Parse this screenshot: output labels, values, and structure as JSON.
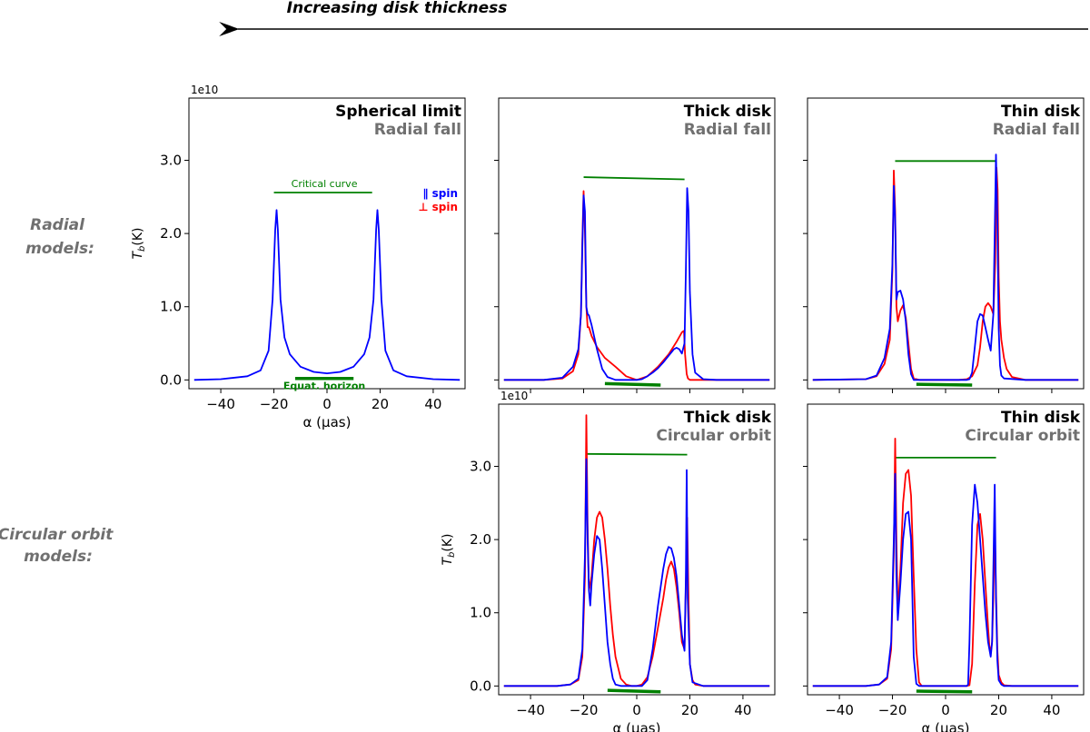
{
  "header": {
    "thickness_label": "Increasing disk thickness"
  },
  "row_labels": {
    "radial": [
      "Radial",
      "models:"
    ],
    "circular": [
      "Circular orbit",
      "models:"
    ]
  },
  "common": {
    "exponent_label": "1e10",
    "ylabel": "T_b(K)",
    "xlabel": "α (μas)",
    "legend": {
      "parallel": "∥ spin",
      "perpendicular": "⊥ spin"
    },
    "annotations": {
      "critical_curve": "Critical curve",
      "equat_horizon": "Equat. horizon"
    },
    "colors": {
      "parallel": "#0000ff",
      "perpendicular": "#ff0000",
      "green": "#008000",
      "title": "#000000",
      "subtitle": "#707070"
    }
  },
  "chart_data": [
    {
      "id": "spherical",
      "type": "line",
      "title": "Spherical limit",
      "subtitle": "Radial fall",
      "xlim": [
        -52,
        52
      ],
      "ylim": [
        -0.12,
        3.85
      ],
      "xticks": [
        -40,
        -20,
        0,
        20,
        40
      ],
      "yticks": [
        0.0,
        1.0,
        2.0,
        3.0
      ],
      "ytick_labels": [
        "0.0",
        "1.0",
        "2.0",
        "3.0"
      ],
      "critical_curve": {
        "x": [
          -20,
          17
        ],
        "y": [
          2.56,
          2.56
        ]
      },
      "horizon": {
        "x": [
          -12,
          10
        ],
        "y": [
          0.02,
          0.02
        ]
      },
      "series": [
        {
          "name": "∥ spin",
          "color": "#0000ff",
          "x": [
            -50,
            -40,
            -30,
            -25,
            -22,
            -20.5,
            -19.5,
            -19,
            -18.5,
            -17.5,
            -16,
            -14,
            -10,
            -5,
            0,
            5,
            10,
            14,
            16,
            17.5,
            18.5,
            19,
            19.5,
            20.5,
            22,
            25,
            30,
            40,
            50
          ],
          "y": [
            0,
            0.01,
            0.05,
            0.13,
            0.4,
            1.1,
            2.05,
            2.32,
            2.05,
            1.1,
            0.58,
            0.35,
            0.18,
            0.11,
            0.09,
            0.11,
            0.18,
            0.35,
            0.58,
            1.1,
            2.05,
            2.32,
            2.05,
            1.1,
            0.4,
            0.13,
            0.05,
            0.01,
            0
          ]
        }
      ]
    },
    {
      "id": "thick-radial",
      "type": "line",
      "title": "Thick disk",
      "subtitle": "Radial fall",
      "xlim": [
        -52,
        52
      ],
      "ylim": [
        -0.12,
        3.85
      ],
      "xticks": [
        -40,
        -20,
        0,
        20,
        40
      ],
      "yticks": [
        0.0,
        1.0,
        2.0,
        3.0
      ],
      "critical_curve": {
        "x": [
          -20,
          18
        ],
        "y": [
          2.77,
          2.74
        ]
      },
      "horizon": {
        "x": [
          -12,
          9
        ],
        "y": [
          -0.05,
          -0.07
        ]
      },
      "series": [
        {
          "name": "⊥ spin",
          "color": "#ff0000",
          "x": [
            -50,
            -35,
            -28,
            -24,
            -22,
            -21,
            -20.5,
            -20,
            -19.5,
            -19,
            -18.5,
            -18,
            -17,
            -15,
            -12,
            -8,
            -4,
            0,
            4,
            8,
            12,
            15,
            17,
            17.8,
            18.2,
            18.8,
            19.3,
            20,
            22,
            30,
            50
          ],
          "y": [
            0,
            0,
            0.02,
            0.12,
            0.35,
            0.9,
            1.9,
            2.58,
            2.0,
            1.0,
            0.72,
            0.72,
            0.6,
            0.45,
            0.3,
            0.18,
            0.05,
            0,
            0.05,
            0.18,
            0.35,
            0.52,
            0.65,
            0.67,
            0.35,
            0.08,
            0.02,
            0,
            0,
            0,
            0
          ]
        },
        {
          "name": "∥ spin",
          "color": "#0000ff",
          "x": [
            -50,
            -35,
            -28,
            -24,
            -22,
            -21,
            -20.5,
            -20,
            -19.5,
            -19,
            -18.5,
            -18,
            -17,
            -15,
            -13,
            -11,
            -8,
            -4,
            0,
            2,
            4,
            6,
            8,
            10,
            12,
            14,
            15,
            16,
            17,
            18,
            18.5,
            19,
            19.5,
            20,
            21,
            22,
            25,
            30,
            50
          ],
          "y": [
            0,
            0,
            0.03,
            0.18,
            0.42,
            0.9,
            1.8,
            2.52,
            2.3,
            1.0,
            0.9,
            0.88,
            0.75,
            0.42,
            0.15,
            0.04,
            0,
            0,
            0,
            0.01,
            0.05,
            0.1,
            0.16,
            0.24,
            0.33,
            0.42,
            0.44,
            0.42,
            0.36,
            0.5,
            1.5,
            2.62,
            2.3,
            1.2,
            0.35,
            0.1,
            0.01,
            0,
            0
          ]
        }
      ]
    },
    {
      "id": "thin-radial",
      "type": "line",
      "title": "Thin disk",
      "subtitle": "Radial fall",
      "xlim": [
        -52,
        52
      ],
      "ylim": [
        -0.12,
        3.85
      ],
      "xticks": [
        -40,
        -20,
        0,
        20,
        40
      ],
      "yticks": [
        0.0,
        1.0,
        2.0,
        3.0
      ],
      "critical_curve": {
        "x": [
          -19,
          19
        ],
        "y": [
          2.99,
          2.99
        ]
      },
      "horizon": {
        "x": [
          -11,
          10
        ],
        "y": [
          -0.06,
          -0.07
        ]
      },
      "series": [
        {
          "name": "⊥ spin",
          "color": "#ff0000",
          "x": [
            -50,
            -30,
            -26,
            -23,
            -21,
            -20,
            -19.5,
            -19,
            -18.5,
            -18,
            -17,
            -16,
            -15,
            -14,
            -13,
            -12,
            -10,
            -5,
            0,
            5,
            8,
            10,
            12,
            13,
            14,
            15,
            16,
            17,
            18,
            18.7,
            19.2,
            19.6,
            20,
            20.5,
            21,
            22,
            23,
            25,
            30,
            50
          ],
          "y": [
            0,
            0.01,
            0.05,
            0.22,
            0.55,
            1.5,
            2.86,
            2.3,
            1.0,
            0.8,
            0.95,
            1.02,
            0.85,
            0.5,
            0.15,
            0.02,
            0,
            0,
            0,
            0,
            0.01,
            0.05,
            0.2,
            0.45,
            0.8,
            1.0,
            1.05,
            1.0,
            0.9,
            1.6,
            2.9,
            2.6,
            1.4,
            0.8,
            0.55,
            0.3,
            0.15,
            0.04,
            0,
            0
          ]
        },
        {
          "name": "∥ spin",
          "color": "#0000ff",
          "x": [
            -50,
            -30,
            -26,
            -23,
            -21,
            -20,
            -19.5,
            -19,
            -18.5,
            -18,
            -17,
            -16,
            -15,
            -14,
            -13,
            -12,
            -10,
            -5,
            0,
            5,
            8,
            9,
            10,
            11,
            12,
            13,
            14,
            15,
            16,
            17,
            18,
            18.5,
            19,
            19.5,
            20,
            20.5,
            21,
            22,
            30,
            50
          ],
          "y": [
            0,
            0.01,
            0.06,
            0.3,
            0.7,
            1.6,
            2.65,
            2.2,
            1.1,
            1.2,
            1.22,
            1.1,
            0.8,
            0.35,
            0.08,
            0,
            0,
            0,
            0,
            0,
            0,
            0.01,
            0.1,
            0.45,
            0.8,
            0.9,
            0.88,
            0.72,
            0.55,
            0.4,
            0.9,
            2.0,
            3.08,
            2.2,
            0.7,
            0.2,
            0.06,
            0.02,
            0,
            0
          ]
        }
      ]
    },
    {
      "id": "thick-circular",
      "type": "line",
      "title": "Thick disk",
      "subtitle": "Circular orbit",
      "xlim": [
        -52,
        52
      ],
      "ylim": [
        -0.12,
        3.85
      ],
      "xticks": [
        -40,
        -20,
        0,
        20,
        40
      ],
      "yticks": [
        0.0,
        1.0,
        2.0,
        3.0
      ],
      "ytick_labels": [
        "0.0",
        "1.0",
        "2.0",
        "3.0"
      ],
      "xtick_labels": [
        "−40",
        "−20",
        "0",
        "20",
        "40"
      ],
      "critical_curve": {
        "x": [
          -19,
          19
        ],
        "y": [
          3.17,
          3.16
        ]
      },
      "horizon": {
        "x": [
          -11,
          9
        ],
        "y": [
          -0.06,
          -0.08
        ]
      },
      "series": [
        {
          "name": "⊥ spin",
          "color": "#ff0000",
          "x": [
            -50,
            -30,
            -25,
            -22,
            -20.5,
            -19.5,
            -19,
            -18.5,
            -18,
            -17,
            -16,
            -15,
            -14,
            -13,
            -12,
            -11,
            -10,
            -9,
            -8,
            -6,
            -4,
            -2,
            0,
            2,
            4,
            6,
            8,
            10,
            11,
            12,
            13,
            14,
            15,
            16,
            17,
            18,
            18.5,
            19,
            19.5,
            20,
            21,
            22,
            25,
            50
          ],
          "y": [
            0,
            0,
            0.02,
            0.08,
            0.4,
            1.5,
            3.7,
            2.2,
            1.3,
            1.5,
            2.0,
            2.3,
            2.38,
            2.3,
            2.0,
            1.6,
            1.1,
            0.7,
            0.4,
            0.1,
            0.02,
            0,
            0,
            0.02,
            0.12,
            0.4,
            0.8,
            1.2,
            1.45,
            1.62,
            1.7,
            1.6,
            1.35,
            1.0,
            0.6,
            0.5,
            1.4,
            2.3,
            1.2,
            0.3,
            0.08,
            0.02,
            0,
            0
          ]
        },
        {
          "name": "∥ spin",
          "color": "#0000ff",
          "x": [
            -50,
            -30,
            -25,
            -22,
            -20.5,
            -19.5,
            -19,
            -18.5,
            -18,
            -17.5,
            -17,
            -16,
            -15,
            -14,
            -13,
            -12,
            -11,
            -10,
            -9,
            -8,
            -6,
            -4,
            -2,
            0,
            2,
            4,
            6,
            8,
            10,
            11,
            12,
            13,
            14,
            15,
            16,
            17,
            18,
            18.5,
            18.8,
            19.2,
            20,
            21,
            25,
            50
          ],
          "y": [
            0,
            0,
            0.02,
            0.1,
            0.5,
            1.8,
            3.1,
            2.0,
            1.3,
            1.1,
            1.4,
            1.8,
            2.05,
            2.0,
            1.6,
            1.1,
            0.6,
            0.3,
            0.1,
            0.02,
            0,
            0,
            0,
            0,
            0,
            0.08,
            0.5,
            1.1,
            1.6,
            1.8,
            1.9,
            1.88,
            1.75,
            1.5,
            1.1,
            0.7,
            0.48,
            1.5,
            2.95,
            1.2,
            0.3,
            0.05,
            0,
            0
          ]
        }
      ]
    },
    {
      "id": "thin-circular",
      "type": "line",
      "title": "Thin disk",
      "subtitle": "Circular orbit",
      "xlim": [
        -52,
        52
      ],
      "ylim": [
        -0.12,
        3.85
      ],
      "xticks": [
        -40,
        -20,
        0,
        20,
        40
      ],
      "yticks": [
        0.0,
        1.0,
        2.0,
        3.0
      ],
      "xtick_labels": [
        "−40",
        "−20",
        "0",
        "20",
        "40"
      ],
      "critical_curve": {
        "x": [
          -19,
          19
        ],
        "y": [
          3.12,
          3.12
        ]
      },
      "horizon": {
        "x": [
          -11,
          10
        ],
        "y": [
          -0.07,
          -0.08
        ]
      },
      "series": [
        {
          "name": "⊥ spin",
          "color": "#ff0000",
          "x": [
            -50,
            -30,
            -25,
            -22,
            -20.5,
            -19.5,
            -19,
            -18.5,
            -18,
            -17,
            -16,
            -15,
            -14,
            -13,
            -12,
            -11,
            -10,
            -9,
            -8,
            -5,
            0,
            5,
            8,
            9,
            10,
            11,
            12,
            13,
            14,
            15,
            16,
            16.5,
            17,
            17.5,
            18,
            18.5,
            19,
            19.5,
            20,
            21,
            22,
            25,
            50
          ],
          "y": [
            0,
            0,
            0.02,
            0.1,
            0.5,
            1.8,
            3.38,
            2.0,
            1.0,
            1.6,
            2.5,
            2.9,
            2.95,
            2.6,
            1.5,
            0.5,
            0.05,
            0,
            0,
            0,
            0,
            0,
            0,
            0.01,
            0.3,
            1.4,
            2.2,
            2.35,
            2.0,
            1.4,
            0.8,
            0.55,
            0.45,
            0.6,
            1.2,
            2.2,
            1.3,
            0.5,
            0.15,
            0.05,
            0.01,
            0,
            0
          ]
        },
        {
          "name": "∥ spin",
          "color": "#0000ff",
          "x": [
            -50,
            -30,
            -25,
            -22,
            -20.5,
            -19.5,
            -19,
            -18.5,
            -18,
            -17,
            -16,
            -15,
            -14,
            -13,
            -12.5,
            -12,
            -11,
            -10,
            -9,
            -5,
            0,
            5,
            8,
            8.5,
            9,
            10,
            11,
            12,
            13,
            14,
            15,
            16,
            17,
            17.5,
            18,
            18.5,
            19,
            19.5,
            20,
            21,
            22,
            25,
            50
          ],
          "y": [
            0,
            0,
            0.02,
            0.12,
            0.6,
            2.0,
            2.9,
            1.5,
            0.9,
            1.4,
            2.0,
            2.35,
            2.38,
            2.0,
            1.2,
            0.4,
            0.03,
            0,
            0,
            0,
            0,
            0,
            0,
            0.02,
            0.6,
            2.2,
            2.75,
            2.5,
            2.0,
            1.5,
            1.0,
            0.6,
            0.4,
            0.6,
            1.6,
            2.75,
            1.2,
            0.35,
            0.08,
            0.02,
            0,
            0,
            0
          ]
        }
      ]
    }
  ]
}
